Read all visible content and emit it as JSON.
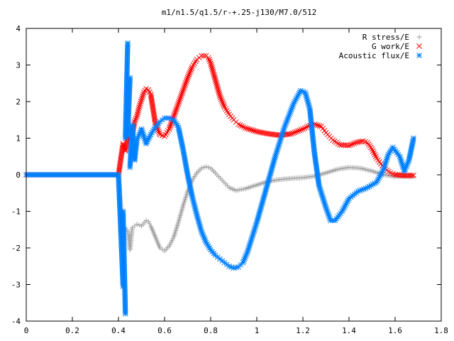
{
  "chart_data": {
    "type": "scatter",
    "title": "m1/n1.5/q1.5/r-+.25-j130/M7.0/512",
    "xlabel": "",
    "ylabel": "",
    "xlim": [
      0,
      1.8
    ],
    "ylim": [
      -4,
      4
    ],
    "x_ticks": [
      0,
      0.2,
      0.4,
      0.6,
      0.8,
      1,
      1.2,
      1.4,
      1.6,
      1.8
    ],
    "x_tick_labels": [
      "0",
      "0.2",
      "0.4",
      "0.6",
      "0.8",
      "1",
      "1.2",
      "1.4",
      "1.6",
      "1.8"
    ],
    "y_ticks": [
      -4,
      -3,
      -2,
      -1,
      0,
      1,
      2,
      3,
      4
    ],
    "y_tick_labels": [
      "-4",
      "-3",
      "-2",
      "-1",
      "0",
      "1",
      "2",
      "3",
      "4"
    ],
    "grid": false,
    "legend_position": "top-right",
    "series": [
      {
        "name": "R stress/E",
        "marker": "plus",
        "color": "#a0a0a0",
        "x": [
          0.0,
          0.4,
          0.42,
          0.43,
          0.44,
          0.45,
          0.46,
          0.48,
          0.5,
          0.52,
          0.53,
          0.54,
          0.56,
          0.58,
          0.6,
          0.62,
          0.64,
          0.66,
          0.68,
          0.7,
          0.72,
          0.74,
          0.76,
          0.78,
          0.8,
          0.82,
          0.85,
          0.88,
          0.91,
          0.95,
          1.0,
          1.05,
          1.1,
          1.15,
          1.2,
          1.25,
          1.3,
          1.35,
          1.4,
          1.45,
          1.5,
          1.55,
          1.6,
          1.65,
          1.68
        ],
        "y": [
          0.0,
          0.0,
          -1.7,
          -1.45,
          -1.55,
          -2.05,
          -1.45,
          -1.35,
          -1.4,
          -1.25,
          -1.28,
          -1.4,
          -1.7,
          -2.0,
          -2.08,
          -1.95,
          -1.7,
          -1.3,
          -0.85,
          -0.45,
          -0.15,
          0.05,
          0.18,
          0.22,
          0.18,
          0.05,
          -0.15,
          -0.35,
          -0.43,
          -0.38,
          -0.28,
          -0.18,
          -0.13,
          -0.1,
          -0.08,
          -0.04,
          0.05,
          0.15,
          0.2,
          0.18,
          0.1,
          0.0,
          -0.05,
          -0.05,
          -0.05
        ]
      },
      {
        "name": "G work/E",
        "marker": "cross",
        "color": "#ff0000",
        "x": [
          0.0,
          0.4,
          0.42,
          0.43,
          0.44,
          0.45,
          0.46,
          0.47,
          0.48,
          0.49,
          0.5,
          0.51,
          0.52,
          0.53,
          0.54,
          0.55,
          0.56,
          0.58,
          0.6,
          0.62,
          0.64,
          0.66,
          0.68,
          0.7,
          0.72,
          0.74,
          0.76,
          0.78,
          0.79,
          0.8,
          0.82,
          0.84,
          0.86,
          0.88,
          0.9,
          0.92,
          0.95,
          1.0,
          1.05,
          1.1,
          1.15,
          1.2,
          1.23,
          1.25,
          1.28,
          1.3,
          1.33,
          1.36,
          1.4,
          1.43,
          1.46,
          1.48,
          1.5,
          1.52,
          1.55,
          1.58,
          1.6,
          1.65,
          1.68
        ],
        "y": [
          0.0,
          0.0,
          0.85,
          0.65,
          1.05,
          0.95,
          1.1,
          1.45,
          1.6,
          1.85,
          2.05,
          2.25,
          2.35,
          2.32,
          2.2,
          1.8,
          1.4,
          1.1,
          1.05,
          1.25,
          1.6,
          1.95,
          2.3,
          2.65,
          2.95,
          3.15,
          3.25,
          3.25,
          3.2,
          3.05,
          2.6,
          2.15,
          1.85,
          1.65,
          1.5,
          1.38,
          1.28,
          1.18,
          1.12,
          1.08,
          1.12,
          1.25,
          1.35,
          1.38,
          1.32,
          1.15,
          0.95,
          0.82,
          0.8,
          0.88,
          0.92,
          0.88,
          0.7,
          0.45,
          0.2,
          0.05,
          0.0,
          -0.02,
          -0.02
        ]
      },
      {
        "name": "Acoustic flux/E",
        "marker": "star",
        "color": "#0080ff",
        "x": [
          0.0,
          0.4,
          0.42,
          0.42,
          0.43,
          0.43,
          0.44,
          0.44,
          0.45,
          0.45,
          0.46,
          0.47,
          0.48,
          0.49,
          0.5,
          0.52,
          0.54,
          0.56,
          0.58,
          0.6,
          0.62,
          0.64,
          0.66,
          0.68,
          0.7,
          0.72,
          0.74,
          0.76,
          0.78,
          0.8,
          0.82,
          0.84,
          0.86,
          0.88,
          0.9,
          0.92,
          0.94,
          0.96,
          1.0,
          1.04,
          1.08,
          1.12,
          1.16,
          1.19,
          1.21,
          1.23,
          1.25,
          1.27,
          1.3,
          1.32,
          1.34,
          1.37,
          1.4,
          1.44,
          1.48,
          1.52,
          1.55,
          1.57,
          1.59,
          1.62,
          1.64,
          1.66,
          1.68
        ],
        "y": [
          0.0,
          0.0,
          -3.05,
          -1.0,
          -3.8,
          1.0,
          3.6,
          1.05,
          2.65,
          0.2,
          1.35,
          0.4,
          0.95,
          1.1,
          1.25,
          0.85,
          1.1,
          1.3,
          1.45,
          1.55,
          1.55,
          1.5,
          1.3,
          0.7,
          0.0,
          -0.6,
          -1.1,
          -1.55,
          -1.85,
          -2.05,
          -2.2,
          -2.3,
          -2.4,
          -2.5,
          -2.55,
          -2.52,
          -2.4,
          -2.1,
          -1.3,
          -0.4,
          0.5,
          1.3,
          1.95,
          2.3,
          2.25,
          1.8,
          0.6,
          -0.3,
          -0.9,
          -1.25,
          -1.25,
          -1.0,
          -0.65,
          -0.45,
          -0.35,
          -0.2,
          0.15,
          0.55,
          0.75,
          0.5,
          0.1,
          0.4,
          1.0
        ]
      }
    ]
  }
}
